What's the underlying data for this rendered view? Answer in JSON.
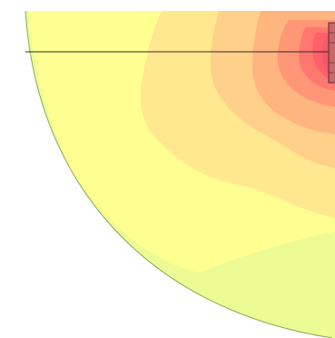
{
  "viewer": {
    "background_color": "#ffffff"
  },
  "contour_plot": {
    "palette": {
      "outer_rim": "#dff89a",
      "outer_band": "#ecfb94",
      "base": "#ffff91",
      "level_1": "#ffe890",
      "level_2": "#ffd08a",
      "level_3": "#ffb57f",
      "level_4": "#ff9676",
      "level_5": "#ff7870",
      "level_6": "#ff606c",
      "peak": "#f25a68",
      "outline": "#8aa858",
      "grid_line": "#2b2b2b",
      "source_fill": "#c6676c",
      "source_stroke": "#5a2a2a"
    }
  }
}
